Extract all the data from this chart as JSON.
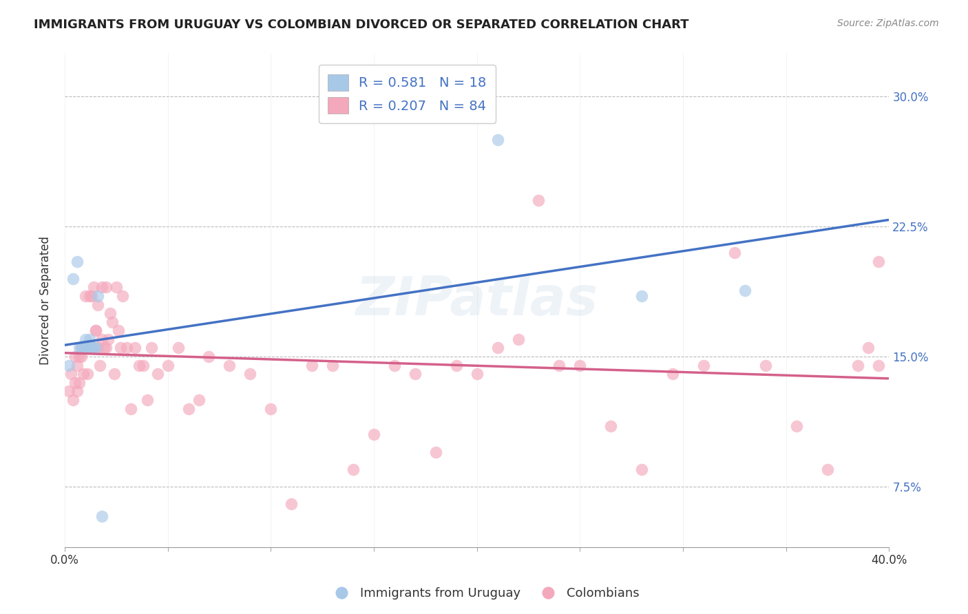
{
  "title": "IMMIGRANTS FROM URUGUAY VS COLOMBIAN DIVORCED OR SEPARATED CORRELATION CHART",
  "source": "Source: ZipAtlas.com",
  "ylabel": "Divorced or Separated",
  "legend_label1": "Immigrants from Uruguay",
  "legend_label2": "Colombians",
  "r1": 0.581,
  "n1": 18,
  "r2": 0.207,
  "n2": 84,
  "xlim": [
    0.0,
    0.4
  ],
  "ylim": [
    0.04,
    0.325
  ],
  "xtick_edge_labels": [
    "0.0%",
    "40.0%"
  ],
  "yticks_right": [
    0.075,
    0.15,
    0.225,
    0.3
  ],
  "ytick_labels_right": [
    "7.5%",
    "15.0%",
    "22.5%",
    "30.0%"
  ],
  "color_blue": "#a8c8e8",
  "color_pink": "#f4a8bc",
  "color_blue_line": "#4472c4",
  "color_pink_line": "#d4608a",
  "title_color": "#222222",
  "source_color": "#888888",
  "legend_r_color": "#4472c4",
  "background_color": "#ffffff",
  "watermark": "ZIPatlas",
  "uruguay_x": [
    0.002,
    0.004,
    0.006,
    0.007,
    0.008,
    0.009,
    0.01,
    0.01,
    0.011,
    0.012,
    0.013,
    0.014,
    0.015,
    0.016,
    0.018,
    0.21,
    0.28,
    0.33
  ],
  "uruguay_y": [
    0.145,
    0.195,
    0.205,
    0.155,
    0.155,
    0.155,
    0.155,
    0.16,
    0.155,
    0.16,
    0.155,
    0.155,
    0.155,
    0.185,
    0.058,
    0.275,
    0.185,
    0.188
  ],
  "colombia_x": [
    0.002,
    0.003,
    0.004,
    0.005,
    0.005,
    0.006,
    0.006,
    0.007,
    0.007,
    0.008,
    0.008,
    0.009,
    0.009,
    0.01,
    0.01,
    0.011,
    0.011,
    0.012,
    0.012,
    0.013,
    0.013,
    0.014,
    0.014,
    0.015,
    0.015,
    0.016,
    0.016,
    0.017,
    0.018,
    0.018,
    0.019,
    0.02,
    0.02,
    0.021,
    0.022,
    0.023,
    0.024,
    0.025,
    0.026,
    0.027,
    0.028,
    0.03,
    0.032,
    0.034,
    0.036,
    0.038,
    0.04,
    0.042,
    0.045,
    0.05,
    0.055,
    0.06,
    0.065,
    0.07,
    0.08,
    0.09,
    0.1,
    0.11,
    0.12,
    0.13,
    0.14,
    0.15,
    0.16,
    0.17,
    0.18,
    0.19,
    0.2,
    0.21,
    0.22,
    0.23,
    0.24,
    0.25,
    0.265,
    0.28,
    0.295,
    0.31,
    0.325,
    0.34,
    0.355,
    0.37,
    0.385,
    0.39,
    0.395,
    0.395
  ],
  "colombia_y": [
    0.13,
    0.14,
    0.125,
    0.15,
    0.135,
    0.145,
    0.13,
    0.15,
    0.135,
    0.15,
    0.155,
    0.155,
    0.14,
    0.155,
    0.185,
    0.155,
    0.14,
    0.155,
    0.185,
    0.185,
    0.155,
    0.19,
    0.155,
    0.165,
    0.165,
    0.155,
    0.18,
    0.145,
    0.19,
    0.16,
    0.155,
    0.19,
    0.155,
    0.16,
    0.175,
    0.17,
    0.14,
    0.19,
    0.165,
    0.155,
    0.185,
    0.155,
    0.12,
    0.155,
    0.145,
    0.145,
    0.125,
    0.155,
    0.14,
    0.145,
    0.155,
    0.12,
    0.125,
    0.15,
    0.145,
    0.14,
    0.12,
    0.065,
    0.145,
    0.145,
    0.085,
    0.105,
    0.145,
    0.14,
    0.095,
    0.145,
    0.14,
    0.155,
    0.16,
    0.24,
    0.145,
    0.145,
    0.11,
    0.085,
    0.14,
    0.145,
    0.21,
    0.145,
    0.11,
    0.085,
    0.145,
    0.155,
    0.205,
    0.145
  ]
}
